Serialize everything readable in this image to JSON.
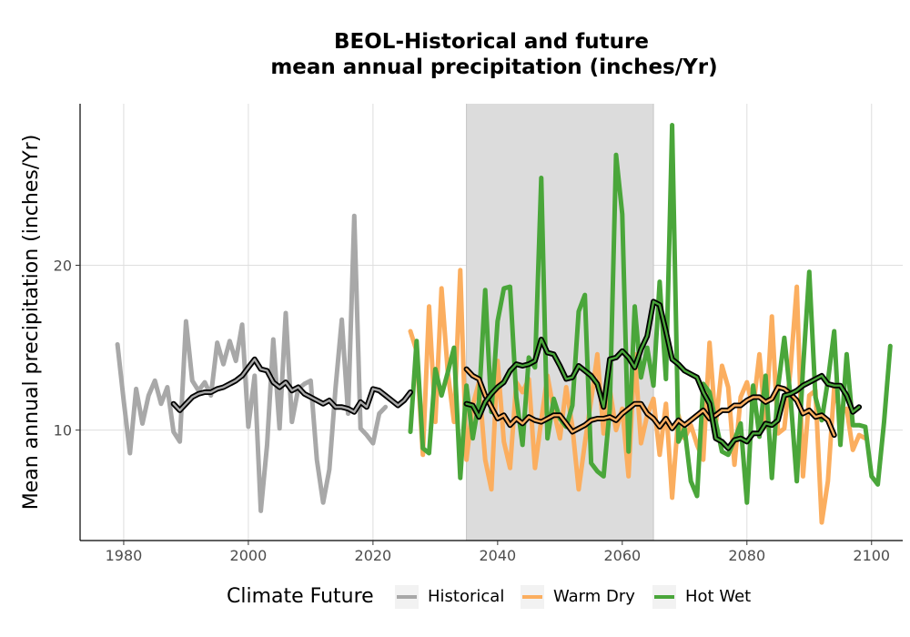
{
  "chart_data": {
    "type": "line",
    "title_lines": [
      "BEOL-Historical and future",
      "mean annual precipitation (inches/Yr)"
    ],
    "xlabel": "",
    "ylabel": "Mean annual precipitation (inches/Yr)",
    "xlim": [
      1973,
      2105
    ],
    "ylim": [
      3.3,
      29.8
    ],
    "x_ticks": [
      1980,
      2000,
      2020,
      2040,
      2060,
      2080,
      2100
    ],
    "y_ticks": [
      10,
      20
    ],
    "grid": true,
    "shaded_period": [
      2035,
      2065
    ],
    "legend": {
      "title": "Climate Future",
      "placement": "bottom",
      "entries": [
        "Historical",
        "Warm Dry",
        "Hot Wet"
      ]
    },
    "colors": {
      "Historical": "#a8a8a8",
      "Warm Dry": "#fbae5f",
      "Hot Wet": "#4aa63a",
      "smooth_outline": "#000000",
      "shade": "#dcdcdc",
      "grid": "#dedede"
    },
    "series": [
      {
        "name": "Historical",
        "x_start": 1979,
        "values": [
          15.2,
          11.8,
          8.6,
          12.5,
          10.4,
          12.1,
          13.0,
          11.6,
          12.6,
          9.9,
          9.3,
          16.6,
          13.0,
          12.4,
          12.9,
          12.1,
          15.3,
          14.0,
          15.4,
          14.2,
          16.4,
          10.2,
          13.3,
          5.1,
          9.1,
          15.5,
          10.1,
          17.1,
          10.5,
          12.5,
          12.8,
          13.0,
          8.2,
          5.6,
          7.6,
          12.6,
          16.7,
          11.0,
          23.0,
          10.1,
          9.7,
          9.2,
          11.0,
          11.4
        ],
        "smooth_x_start": 1988,
        "smooth": [
          11.6,
          11.2,
          11.6,
          12.0,
          12.2,
          12.3,
          12.3,
          12.5,
          12.6,
          12.8,
          13.0,
          13.3,
          13.8,
          14.3,
          13.7,
          13.6,
          12.9,
          12.6,
          12.9,
          12.4,
          12.6,
          12.2,
          12.0,
          11.8,
          11.6,
          11.8,
          11.4,
          11.4,
          11.3,
          11.1,
          11.7,
          11.4,
          12.5,
          12.4,
          12.1,
          11.8,
          11.5,
          11.8,
          12.3
        ]
      },
      {
        "name": "Warm Dry",
        "x_start": 2026,
        "values": [
          16.0,
          14.8,
          8.5,
          17.5,
          10.5,
          18.6,
          13.5,
          10.5,
          19.7,
          8.2,
          11.5,
          12.9,
          8.2,
          6.4,
          14.2,
          9.3,
          7.7,
          12.9,
          12.3,
          13.1,
          7.7,
          10.6,
          13.3,
          11.2,
          9.5,
          12.6,
          10.2,
          6.4,
          9.2,
          11.8,
          14.6,
          9.8,
          12.5,
          10.0,
          11.3,
          7.2,
          14.6,
          9.2,
          10.9,
          11.9,
          8.5,
          11.6,
          5.9,
          10.9,
          9.5,
          10.3,
          9.1,
          8.2,
          15.3,
          10.3,
          13.9,
          12.6,
          7.9,
          12.0,
          12.9,
          11.3,
          14.6,
          10.2,
          16.9,
          9.8,
          10.1,
          13.7,
          18.7,
          7.2,
          12.1,
          12.4,
          4.4,
          6.9,
          12.6,
          11.0,
          11.3,
          8.8,
          9.7,
          9.5
        ],
        "smooth_x_start": 2035,
        "smooth": [
          13.7,
          13.3,
          13.1,
          12.1,
          11.4,
          10.7,
          10.9,
          10.3,
          10.7,
          10.4,
          10.8,
          10.6,
          10.5,
          10.7,
          10.9,
          10.9,
          10.4,
          9.9,
          10.1,
          10.3,
          10.6,
          10.7,
          10.7,
          10.8,
          10.6,
          11.0,
          11.3,
          11.6,
          11.6,
          11.0,
          10.7,
          10.2,
          10.7,
          10.1,
          10.6,
          10.3,
          10.6,
          10.9,
          11.2,
          10.7,
          10.9,
          11.2,
          11.2,
          11.5,
          11.5,
          11.8,
          12.0,
          12.0,
          11.7,
          11.9,
          12.6,
          12.5,
          12.2,
          11.8,
          11.0,
          11.2,
          10.8,
          10.9,
          10.6,
          9.7
        ]
      },
      {
        "name": "Hot Wet",
        "x_start": 2026,
        "values": [
          9.9,
          15.4,
          8.9,
          8.6,
          13.7,
          12.1,
          13.5,
          15.0,
          7.1,
          12.7,
          9.5,
          11.7,
          18.5,
          11.1,
          16.6,
          18.6,
          18.7,
          12.0,
          9.1,
          14.4,
          13.8,
          25.3,
          9.5,
          11.9,
          10.7,
          10.2,
          11.5,
          17.2,
          18.2,
          8.0,
          7.5,
          7.2,
          11.3,
          26.7,
          23.1,
          8.7,
          17.5,
          13.2,
          15.0,
          12.7,
          19.0,
          13.1,
          28.5,
          9.3,
          10.1,
          6.9,
          6.0,
          12.8,
          12.3,
          10.5,
          8.7,
          8.5,
          9.4,
          10.4,
          5.6,
          12.7,
          9.6,
          13.3,
          7.1,
          12.6,
          15.6,
          12.0,
          6.9,
          13.7,
          19.6,
          12.0,
          10.6,
          13.0,
          16.0,
          9.1,
          14.6,
          10.3,
          10.3,
          10.2,
          7.2,
          6.7,
          10.5,
          15.1
        ],
        "smooth_x_start": 2035,
        "smooth": [
          11.6,
          11.5,
          10.8,
          11.7,
          12.2,
          12.6,
          12.9,
          13.6,
          14.0,
          13.9,
          14.0,
          14.2,
          15.5,
          14.7,
          14.6,
          13.9,
          13.1,
          13.2,
          13.9,
          13.6,
          13.3,
          12.8,
          11.4,
          14.3,
          14.4,
          14.8,
          14.4,
          13.8,
          14.9,
          15.7,
          17.8,
          17.6,
          16.0,
          14.3,
          14.0,
          13.6,
          13.4,
          13.2,
          12.3,
          11.6,
          9.5,
          9.3,
          8.9,
          9.4,
          9.5,
          9.3,
          9.8,
          9.8,
          10.4,
          10.3,
          10.6,
          12.1,
          12.2,
          12.4,
          12.7,
          12.9,
          13.1,
          13.3,
          12.8,
          12.7,
          12.7,
          12.1,
          11.1,
          11.4
        ]
      }
    ]
  }
}
